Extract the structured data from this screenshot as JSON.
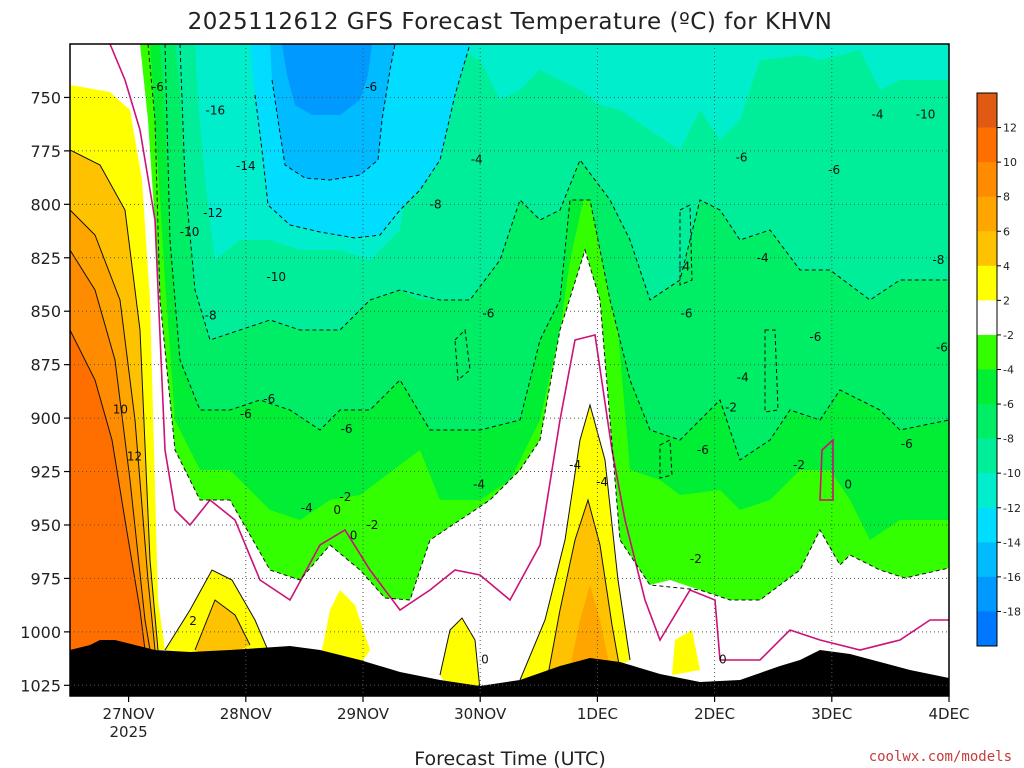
{
  "title": "2025112612 GFS Forecast Temperature (ºC) for KHVN",
  "credit": "coolwx.com/models",
  "chart_data": {
    "type": "time-height cross section (filled contour)",
    "title": "2025112612 GFS Forecast Temperature (ºC) for KHVN",
    "xlabel": "Forecast Time (UTC)",
    "ylabel": "",
    "x_ticks": [
      {
        "label": "27NOV",
        "sub": "2025"
      },
      {
        "label": "28NOV",
        "sub": ""
      },
      {
        "label": "29NOV",
        "sub": ""
      },
      {
        "label": "30NOV",
        "sub": ""
      },
      {
        "label": "1DEC",
        "sub": ""
      },
      {
        "label": "2DEC",
        "sub": ""
      },
      {
        "label": "3DEC",
        "sub": ""
      },
      {
        "label": "4DEC",
        "sub": ""
      }
    ],
    "y_ticks": [
      "750",
      "775",
      "800",
      "825",
      "850",
      "875",
      "900",
      "925",
      "950",
      "975",
      "1000",
      "1025"
    ],
    "y_range_hpa": [
      725,
      1030
    ],
    "x_range_days": [
      -0.5,
      7
    ],
    "grid": "dotted",
    "colorbar": {
      "labels": [
        "12",
        "10",
        "8",
        "6",
        "4",
        "2",
        "-2",
        "-4",
        "-6",
        "-8",
        "-10",
        "-12",
        "-14",
        "-16",
        "-18"
      ],
      "bins": [
        {
          "lo": 12,
          "hi": 14,
          "color": "#e05a14"
        },
        {
          "lo": 10,
          "hi": 12,
          "color": "#ff6f00"
        },
        {
          "lo": 8,
          "hi": 10,
          "color": "#ff8c00"
        },
        {
          "lo": 6,
          "hi": 8,
          "color": "#ffa500"
        },
        {
          "lo": 4,
          "hi": 6,
          "color": "#ffc200"
        },
        {
          "lo": 2,
          "hi": 4,
          "color": "#ffff00"
        },
        {
          "lo": -2,
          "hi": 2,
          "color": "#ffffff"
        },
        {
          "lo": -4,
          "hi": -2,
          "color": "#33ff00"
        },
        {
          "lo": -6,
          "hi": -4,
          "color": "#00ee33"
        },
        {
          "lo": -8,
          "hi": -6,
          "color": "#00ee66"
        },
        {
          "lo": -10,
          "hi": -8,
          "color": "#00ee99"
        },
        {
          "lo": -12,
          "hi": -10,
          "color": "#00eecc"
        },
        {
          "lo": -14,
          "hi": -12,
          "color": "#00ddff"
        },
        {
          "lo": -16,
          "hi": -14,
          "color": "#00bbff"
        },
        {
          "lo": -18,
          "hi": -16,
          "color": "#0099ff"
        },
        {
          "lo": -20,
          "hi": -18,
          "color": "#0077ff"
        }
      ]
    },
    "terrain_color": "#a0522d",
    "freezing_line_color": "#cc1177",
    "contour_labels": [
      {
        "text": "-16",
        "day": 0.74,
        "hpa": 756
      },
      {
        "text": "-14",
        "day": 1.0,
        "hpa": 782
      },
      {
        "text": "-12",
        "day": 0.72,
        "hpa": 804
      },
      {
        "text": "-10",
        "day": 1.26,
        "hpa": 834
      },
      {
        "text": "-10",
        "day": 0.52,
        "hpa": 813
      },
      {
        "text": "-8",
        "day": 0.7,
        "hpa": 852
      },
      {
        "text": "-6",
        "day": 0.25,
        "hpa": 745
      },
      {
        "text": "-6",
        "day": 2.07,
        "hpa": 745
      },
      {
        "text": "-4",
        "day": 2.97,
        "hpa": 779
      },
      {
        "text": "-8",
        "day": 2.62,
        "hpa": 800
      },
      {
        "text": "-4",
        "day": 6.39,
        "hpa": 758
      },
      {
        "text": "-10",
        "day": 6.8,
        "hpa": 758
      },
      {
        "text": "-6",
        "day": 5.23,
        "hpa": 778
      },
      {
        "text": "-6",
        "day": 6.02,
        "hpa": 784
      },
      {
        "text": "-4",
        "day": 5.41,
        "hpa": 825
      },
      {
        "text": "-8",
        "day": 6.91,
        "hpa": 826
      },
      {
        "text": "-4",
        "day": 4.74,
        "hpa": 829
      },
      {
        "text": "-6",
        "day": 1.0,
        "hpa": 898
      },
      {
        "text": "-6",
        "day": 1.2,
        "hpa": 891
      },
      {
        "text": "-6",
        "day": 1.86,
        "hpa": 905
      },
      {
        "text": "-6",
        "day": 3.07,
        "hpa": 851
      },
      {
        "text": "-6",
        "day": 4.76,
        "hpa": 851
      },
      {
        "text": "-6",
        "day": 5.86,
        "hpa": 862
      },
      {
        "text": "-6",
        "day": 4.9,
        "hpa": 915
      },
      {
        "text": "-4",
        "day": 3.81,
        "hpa": 922
      },
      {
        "text": "-4",
        "day": 5.24,
        "hpa": 881
      },
      {
        "text": "-6",
        "day": 6.64,
        "hpa": 912
      },
      {
        "text": "-6",
        "day": 6.94,
        "hpa": 867
      },
      {
        "text": "-4",
        "day": 1.52,
        "hpa": 942
      },
      {
        "text": "-4",
        "day": 2.99,
        "hpa": 931
      },
      {
        "text": "-4",
        "day": 4.04,
        "hpa": 930
      },
      {
        "text": "-2",
        "day": 1.85,
        "hpa": 937
      },
      {
        "text": "-2",
        "day": 2.08,
        "hpa": 950
      },
      {
        "text": "-2",
        "day": 4.84,
        "hpa": 966
      },
      {
        "text": "-2",
        "day": 5.14,
        "hpa": 895
      },
      {
        "text": "-2",
        "day": 5.72,
        "hpa": 922
      },
      {
        "text": "0",
        "day": 1.78,
        "hpa": 943
      },
      {
        "text": "0",
        "day": 1.92,
        "hpa": 955
      },
      {
        "text": "0",
        "day": 3.04,
        "hpa": 1013
      },
      {
        "text": "0",
        "day": 5.07,
        "hpa": 1013
      },
      {
        "text": "0",
        "day": 6.14,
        "hpa": 931
      },
      {
        "text": "2",
        "day": 0.55,
        "hpa": 995
      },
      {
        "text": "10",
        "day": -0.07,
        "hpa": 896
      },
      {
        "text": "12",
        "day": 0.05,
        "hpa": 918
      }
    ]
  }
}
